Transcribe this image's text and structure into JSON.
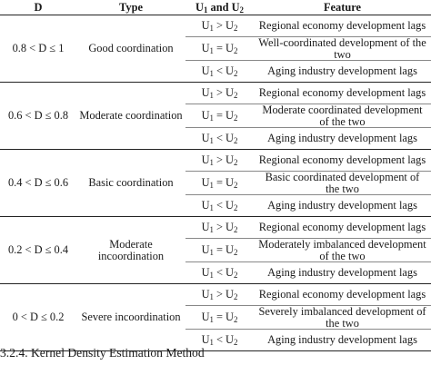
{
  "headers": {
    "d": "D",
    "type": "Type",
    "u_pre": "U",
    "u_sub1": "1",
    "u_mid": " and U",
    "u_sub2": "2",
    "feature": "Feature"
  },
  "groups": [
    {
      "range": "0.8 < D ≤ 1",
      "type": "Good coordination",
      "rows": [
        {
          "rel": ">",
          "feature": "Regional economy development lags"
        },
        {
          "rel": "=",
          "feature": "Well-coordinated development of the two"
        },
        {
          "rel": "<",
          "feature": "Aging industry development lags"
        }
      ]
    },
    {
      "range": "0.6 < D ≤ 0.8",
      "type": "Moderate coordination",
      "rows": [
        {
          "rel": ">",
          "feature": "Regional economy development lags"
        },
        {
          "rel": "=",
          "feature": "Moderate coordinated development of the two"
        },
        {
          "rel": "<",
          "feature": "Aging industry development lags"
        }
      ]
    },
    {
      "range": "0.4 < D ≤ 0.6",
      "type": "Basic coordination",
      "rows": [
        {
          "rel": ">",
          "feature": "Regional economy development lags"
        },
        {
          "rel": "=",
          "feature": "Basic coordinated development of the two"
        },
        {
          "rel": "<",
          "feature": "Aging industry development lags"
        }
      ]
    },
    {
      "range": "0.2 < D ≤ 0.4",
      "type": "Moderate incoordination",
      "rows": [
        {
          "rel": ">",
          "feature": "Regional economy development lags"
        },
        {
          "rel": "=",
          "feature": "Moderately imbalanced development of the two"
        },
        {
          "rel": "<",
          "feature": "Aging industry development lags"
        }
      ]
    },
    {
      "range": "0 < D ≤ 0.2",
      "type": "Severe incoordination",
      "rows": [
        {
          "rel": ">",
          "feature": "Regional economy development lags"
        },
        {
          "rel": "=",
          "feature": "Severely imbalanced development of the two"
        },
        {
          "rel": "<",
          "feature": "Aging industry development lags"
        }
      ]
    }
  ],
  "u_letter": "U",
  "sub1": "1",
  "sub2": "2",
  "section_heading": "3.2.4. Kernel Density Estimation Method"
}
